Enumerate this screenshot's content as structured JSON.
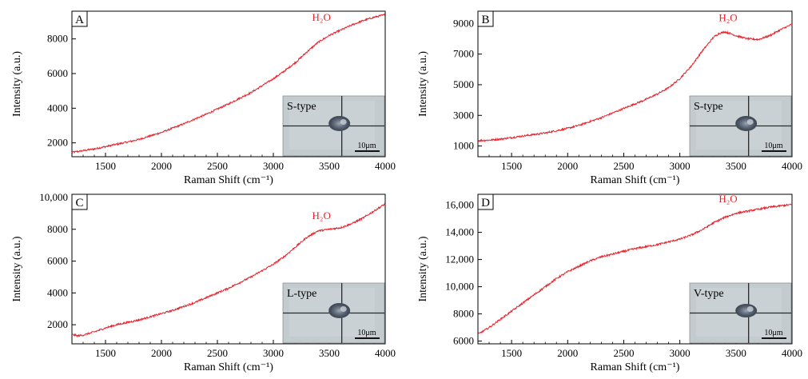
{
  "figure": {
    "panels_note": "four Raman spectra panels",
    "accent_color": "#e8212b"
  },
  "chart_data": [
    {
      "type": "line",
      "panel_label": "A",
      "xlabel": "Raman Shift (cm⁻¹)",
      "ylabel": "Intensity (a.u.)",
      "xlim": [
        1200,
        4000
      ],
      "ylim": [
        1200,
        9600
      ],
      "xticks": [
        1500,
        2000,
        2500,
        3000,
        3500,
        4000
      ],
      "yticks": [
        2000,
        4000,
        6000,
        8000
      ],
      "ytick_labels": [
        "2000",
        "4000",
        "6000",
        "8000"
      ],
      "annotation": {
        "text": "H₂O",
        "x": 3430,
        "y": 9050
      },
      "inset": {
        "label": "S-type",
        "scale": "10μm"
      },
      "series": [
        {
          "color": "#e8212b",
          "x": [
            1200,
            1300,
            1400,
            1500,
            1600,
            1700,
            1800,
            1900,
            2000,
            2100,
            2200,
            2300,
            2400,
            2500,
            2600,
            2700,
            2800,
            2900,
            3000,
            3100,
            3200,
            3300,
            3400,
            3500,
            3600,
            3700,
            3800,
            3900,
            4000
          ],
          "y": [
            1450,
            1550,
            1650,
            1780,
            1920,
            2050,
            2200,
            2400,
            2600,
            2850,
            3100,
            3380,
            3650,
            3950,
            4250,
            4580,
            4900,
            5300,
            5700,
            6150,
            6650,
            7250,
            7800,
            8200,
            8500,
            8800,
            9050,
            9250,
            9400
          ]
        }
      ]
    },
    {
      "type": "line",
      "panel_label": "B",
      "xlabel": "Raman Shift (cm⁻¹)",
      "ylabel": "Intensity (a.u.)",
      "xlim": [
        1200,
        4000
      ],
      "ylim": [
        300,
        9800
      ],
      "xticks": [
        1500,
        2000,
        2500,
        3000,
        3500,
        4000
      ],
      "yticks": [
        1000,
        3000,
        5000,
        7000,
        9000
      ],
      "ytick_labels": [
        "1000",
        "3000",
        "5000",
        "7000",
        "9000"
      ],
      "annotation": {
        "text": "H₂O",
        "x": 3430,
        "y": 9150
      },
      "inset": {
        "label": "S-type",
        "scale": "10μm"
      },
      "series": [
        {
          "color": "#e8212b",
          "x": [
            1200,
            1300,
            1400,
            1500,
            1600,
            1700,
            1800,
            1900,
            2000,
            2100,
            2200,
            2300,
            2400,
            2500,
            2600,
            2700,
            2800,
            2900,
            3000,
            3100,
            3200,
            3300,
            3350,
            3400,
            3450,
            3500,
            3600,
            3700,
            3800,
            3900,
            4000
          ],
          "y": [
            1350,
            1380,
            1450,
            1550,
            1650,
            1750,
            1850,
            2000,
            2150,
            2350,
            2600,
            2850,
            3150,
            3450,
            3750,
            4050,
            4400,
            4800,
            5400,
            6200,
            7200,
            8100,
            8350,
            8450,
            8350,
            8200,
            8000,
            7950,
            8200,
            8600,
            8950
          ]
        }
      ]
    },
    {
      "type": "line",
      "panel_label": "C",
      "xlabel": "Raman Shift (cm⁻¹)",
      "ylabel": "Intensity (a.u.)",
      "xlim": [
        1200,
        4000
      ],
      "ylim": [
        800,
        10200
      ],
      "xticks": [
        1500,
        2000,
        2500,
        3000,
        3500,
        4000
      ],
      "yticks": [
        2000,
        4000,
        6000,
        8000,
        10000
      ],
      "ytick_labels": [
        "2000",
        "4000",
        "6000",
        "8000",
        "10,000"
      ],
      "annotation": {
        "text": "H₂O",
        "x": 3430,
        "y": 8650
      },
      "inset": {
        "label": "L-type",
        "scale": "10μm"
      },
      "series": [
        {
          "color": "#e8212b",
          "x": [
            1200,
            1250,
            1300,
            1400,
            1500,
            1600,
            1700,
            1800,
            1900,
            2000,
            2100,
            2200,
            2300,
            2400,
            2500,
            2600,
            2700,
            2800,
            2900,
            3000,
            3100,
            3200,
            3300,
            3400,
            3500,
            3600,
            3700,
            3800,
            3900,
            4000
          ],
          "y": [
            1400,
            1300,
            1350,
            1550,
            1800,
            2000,
            2150,
            2300,
            2500,
            2700,
            2900,
            3150,
            3400,
            3700,
            4000,
            4300,
            4650,
            5000,
            5400,
            5800,
            6300,
            6900,
            7500,
            7900,
            8000,
            8100,
            8350,
            8700,
            9150,
            9600
          ]
        }
      ]
    },
    {
      "type": "line",
      "panel_label": "D",
      "xlabel": "Raman Shift (cm⁻¹)",
      "ylabel": "Intensity (a.u.)",
      "xlim": [
        1200,
        4000
      ],
      "ylim": [
        5800,
        16800
      ],
      "xticks": [
        1500,
        2000,
        2500,
        3000,
        3500,
        4000
      ],
      "yticks": [
        6000,
        8000,
        10000,
        12000,
        14000,
        16000
      ],
      "ytick_labels": [
        "6000",
        "8000",
        "10,000",
        "12,000",
        "14,000",
        "16,000"
      ],
      "annotation": {
        "text": "H₂O",
        "x": 3430,
        "y": 16200
      },
      "inset": {
        "label": "V-type",
        "scale": "10μm"
      },
      "series": [
        {
          "color": "#e8212b",
          "x": [
            1200,
            1300,
            1400,
            1500,
            1600,
            1700,
            1800,
            1900,
            2000,
            2100,
            2200,
            2300,
            2400,
            2500,
            2600,
            2700,
            2800,
            2900,
            3000,
            3100,
            3200,
            3300,
            3400,
            3500,
            3600,
            3700,
            3800,
            3900,
            4000
          ],
          "y": [
            6500,
            7000,
            7600,
            8200,
            8800,
            9400,
            10000,
            10600,
            11100,
            11500,
            11900,
            12200,
            12400,
            12600,
            12800,
            12950,
            13100,
            13300,
            13500,
            13800,
            14200,
            14700,
            15100,
            15400,
            15550,
            15700,
            15850,
            15950,
            16050
          ]
        }
      ]
    }
  ]
}
